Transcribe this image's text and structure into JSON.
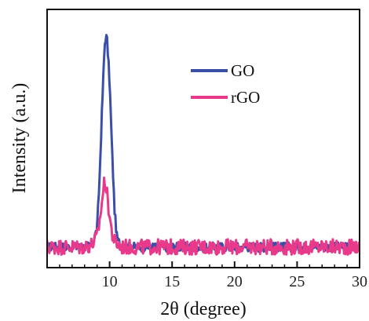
{
  "chart_data": {
    "type": "line",
    "xlabel": "2θ (degree)",
    "ylabel": "Intensity (a.u.)",
    "xlim": [
      5,
      30
    ],
    "ylim": [
      0,
      1
    ],
    "xticks": [
      10,
      15,
      20,
      25,
      30
    ],
    "xtick_labels": [
      "10",
      "15",
      "20",
      "25",
      "30"
    ],
    "y_ticks_shown": false,
    "grid": false,
    "legend_position": "top-right",
    "series": [
      {
        "name": "GO",
        "color": "#3c4fa8",
        "x": [
          5.0,
          6.0,
          7.0,
          8.0,
          8.6,
          9.0,
          9.2,
          9.4,
          9.6,
          9.7,
          9.8,
          10.0,
          10.2,
          10.4,
          10.6,
          11.0,
          12.0,
          14.0,
          16.0,
          18.0,
          20.0,
          22.0,
          24.0,
          26.0,
          28.0,
          30.0
        ],
        "y": [
          0.08,
          0.08,
          0.08,
          0.08,
          0.09,
          0.15,
          0.35,
          0.62,
          0.86,
          0.9,
          0.88,
          0.72,
          0.45,
          0.22,
          0.11,
          0.08,
          0.08,
          0.08,
          0.08,
          0.08,
          0.08,
          0.08,
          0.08,
          0.08,
          0.08,
          0.08
        ]
      },
      {
        "name": "rGO",
        "color": "#e8398b",
        "x": [
          5.0,
          6.0,
          7.0,
          8.0,
          8.6,
          9.0,
          9.2,
          9.4,
          9.5,
          9.6,
          9.7,
          9.8,
          10.0,
          10.2,
          10.4,
          10.6,
          11.0,
          12.0,
          14.0,
          16.0,
          18.0,
          20.0,
          22.0,
          24.0,
          26.0,
          28.0,
          30.0
        ],
        "y": [
          0.08,
          0.08,
          0.08,
          0.08,
          0.09,
          0.12,
          0.18,
          0.26,
          0.3,
          0.34,
          0.32,
          0.28,
          0.2,
          0.13,
          0.1,
          0.09,
          0.08,
          0.08,
          0.08,
          0.08,
          0.08,
          0.08,
          0.08,
          0.08,
          0.08,
          0.08,
          0.08
        ]
      }
    ]
  }
}
